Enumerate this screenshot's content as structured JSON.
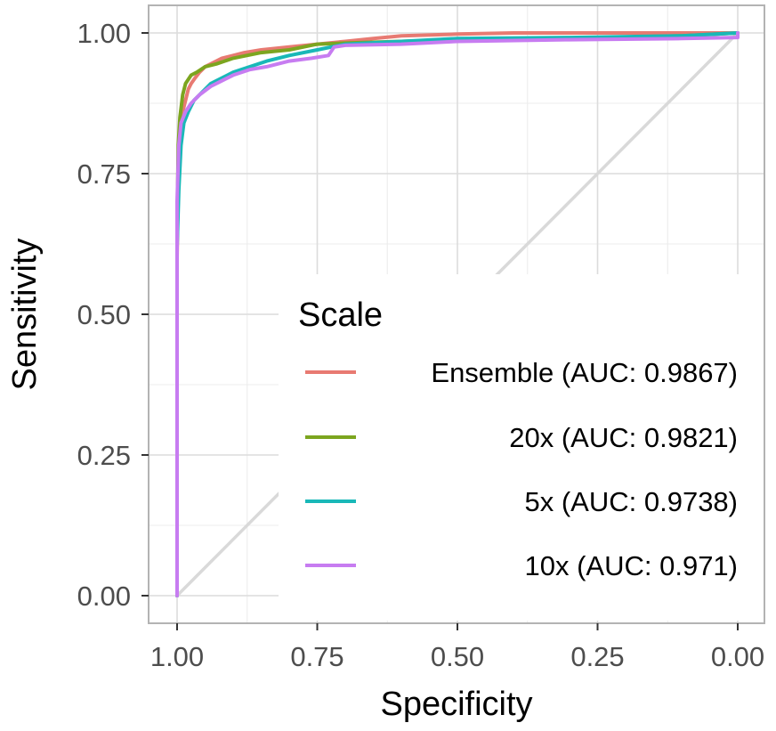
{
  "chart_data": {
    "type": "line",
    "title": "",
    "xlabel": "Specificity",
    "ylabel": "Sensitivity",
    "xlim": [
      1.0,
      0.0
    ],
    "ylim": [
      0.0,
      1.0
    ],
    "x_reversed": true,
    "x_ticks": [
      1.0,
      0.75,
      0.5,
      0.25,
      0.0
    ],
    "x_tick_labels": [
      "1.00",
      "0.75",
      "0.50",
      "0.25",
      "0.00"
    ],
    "y_ticks": [
      0.0,
      0.25,
      0.5,
      0.75,
      1.0
    ],
    "y_tick_labels": [
      "0.00",
      "0.25",
      "0.50",
      "0.75",
      "1.00"
    ],
    "grid": true,
    "reference_line": {
      "from": [
        1.0,
        0.0
      ],
      "to": [
        0.0,
        1.0
      ],
      "color": "#d9d9d9"
    },
    "legend": {
      "title": "Scale",
      "position": "bottom-right inside",
      "entries": [
        "Ensemble (AUC: 0.9867)",
        "20x (AUC: 0.9821)",
        "5x (AUC: 0.9738)",
        "10x (AUC: 0.971)"
      ]
    },
    "series": [
      {
        "name": "Ensemble (AUC: 0.9867)",
        "color": "#e87a72",
        "points": [
          [
            1.0,
            0.0
          ],
          [
            1.0,
            0.6
          ],
          [
            0.998,
            0.75
          ],
          [
            0.995,
            0.82
          ],
          [
            0.99,
            0.86
          ],
          [
            0.985,
            0.88
          ],
          [
            0.98,
            0.9
          ],
          [
            0.975,
            0.91
          ],
          [
            0.968,
            0.92
          ],
          [
            0.96,
            0.93
          ],
          [
            0.95,
            0.94
          ],
          [
            0.94,
            0.945
          ],
          [
            0.92,
            0.955
          ],
          [
            0.9,
            0.96
          ],
          [
            0.88,
            0.965
          ],
          [
            0.85,
            0.97
          ],
          [
            0.8,
            0.975
          ],
          [
            0.75,
            0.98
          ],
          [
            0.7,
            0.985
          ],
          [
            0.65,
            0.99
          ],
          [
            0.6,
            0.995
          ],
          [
            0.5,
            0.998
          ],
          [
            0.4,
            1.0
          ],
          [
            0.0,
            1.0
          ]
        ]
      },
      {
        "name": "20x (AUC: 0.9821)",
        "color": "#7ca51f",
        "points": [
          [
            1.0,
            0.0
          ],
          [
            1.0,
            0.65
          ],
          [
            0.998,
            0.8
          ],
          [
            0.995,
            0.85
          ],
          [
            0.99,
            0.89
          ],
          [
            0.985,
            0.91
          ],
          [
            0.975,
            0.925
          ],
          [
            0.965,
            0.93
          ],
          [
            0.95,
            0.94
          ],
          [
            0.93,
            0.945
          ],
          [
            0.9,
            0.955
          ],
          [
            0.85,
            0.965
          ],
          [
            0.8,
            0.97
          ],
          [
            0.75,
            0.98
          ],
          [
            0.7,
            0.982
          ],
          [
            0.6,
            0.985
          ],
          [
            0.5,
            0.988
          ],
          [
            0.3,
            0.99
          ],
          [
            0.1,
            0.995
          ],
          [
            0.0,
            1.0
          ]
        ]
      },
      {
        "name": "5x (AUC: 0.9738)",
        "color": "#19b8b8",
        "points": [
          [
            1.0,
            0.0
          ],
          [
            1.0,
            0.62
          ],
          [
            0.997,
            0.72
          ],
          [
            0.993,
            0.8
          ],
          [
            0.988,
            0.84
          ],
          [
            0.98,
            0.86
          ],
          [
            0.97,
            0.88
          ],
          [
            0.96,
            0.89
          ],
          [
            0.94,
            0.91
          ],
          [
            0.92,
            0.92
          ],
          [
            0.9,
            0.93
          ],
          [
            0.87,
            0.94
          ],
          [
            0.84,
            0.95
          ],
          [
            0.8,
            0.96
          ],
          [
            0.75,
            0.97
          ],
          [
            0.7,
            0.98
          ],
          [
            0.6,
            0.985
          ],
          [
            0.5,
            0.99
          ],
          [
            0.3,
            0.992
          ],
          [
            0.1,
            0.995
          ],
          [
            0.0,
            1.0
          ]
        ]
      },
      {
        "name": "10x (AUC: 0.971)",
        "color": "#c77cf1",
        "points": [
          [
            1.0,
            0.0
          ],
          [
            1.0,
            0.7
          ],
          [
            0.997,
            0.8
          ],
          [
            0.993,
            0.84
          ],
          [
            0.985,
            0.86
          ],
          [
            0.975,
            0.875
          ],
          [
            0.96,
            0.89
          ],
          [
            0.94,
            0.905
          ],
          [
            0.92,
            0.915
          ],
          [
            0.9,
            0.925
          ],
          [
            0.87,
            0.935
          ],
          [
            0.84,
            0.94
          ],
          [
            0.8,
            0.95
          ],
          [
            0.76,
            0.955
          ],
          [
            0.73,
            0.96
          ],
          [
            0.72,
            0.975
          ],
          [
            0.7,
            0.978
          ],
          [
            0.6,
            0.98
          ],
          [
            0.5,
            0.985
          ],
          [
            0.3,
            0.988
          ],
          [
            0.1,
            0.99
          ],
          [
            0.0,
            0.992
          ],
          [
            0.0,
            1.0
          ]
        ]
      }
    ]
  }
}
